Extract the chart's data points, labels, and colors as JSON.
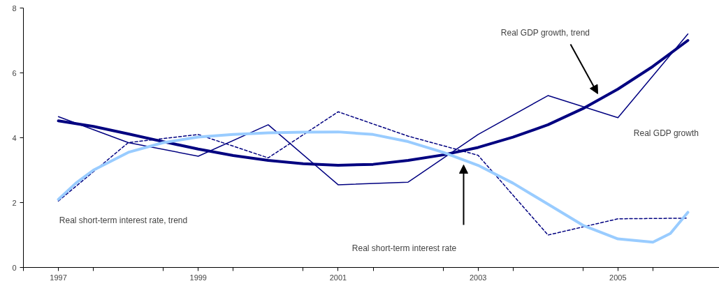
{
  "chart_data": {
    "type": "line",
    "xlim": [
      1996.5,
      2006.45
    ],
    "xticks": [
      {
        "value": 1996.5,
        "label": null
      },
      {
        "value": 1997,
        "label": "1997"
      },
      {
        "value": 1997.5,
        "label": null
      },
      {
        "value": 1998.5,
        "label": null
      },
      {
        "value": 1999,
        "label": "1999"
      },
      {
        "value": 1999.5,
        "label": null
      },
      {
        "value": 2000.5,
        "label": null
      },
      {
        "value": 2001,
        "label": "2001"
      },
      {
        "value": 2001.5,
        "label": null
      },
      {
        "value": 2002.5,
        "label": null
      },
      {
        "value": 2003,
        "label": "2003"
      },
      {
        "value": 2003.5,
        "label": null
      },
      {
        "value": 2004.5,
        "label": null
      },
      {
        "value": 2005,
        "label": "2005"
      },
      {
        "value": 2005.5,
        "label": null
      }
    ],
    "ylim": [
      0,
      8
    ],
    "yticks": [
      0,
      2,
      4,
      6,
      8
    ],
    "grid": false,
    "marker": "none",
    "series": [
      {
        "color": "#000080",
        "line_style": "solid",
        "x": [
          1997,
          1998,
          1999,
          2000,
          2001,
          2002,
          2003,
          2004,
          2005,
          2006
        ],
        "values": [
          4.65,
          3.85,
          3.43,
          4.4,
          2.55,
          2.63,
          4.1,
          5.3,
          4.62,
          7.2
        ]
      },
      {
        "color": "#000080",
        "line_style": "dashed",
        "x": [
          1997,
          1998,
          1999,
          2000,
          2001,
          2002,
          2003,
          2004,
          2005,
          2006
        ],
        "values": [
          2.05,
          3.85,
          4.1,
          3.38,
          4.8,
          4.05,
          3.46,
          1.0,
          1.5,
          1.52
        ]
      },
      {
        "color": "#000080",
        "line_style": "solid",
        "x": [
          1997,
          1997.5,
          1998,
          1998.5,
          1999,
          1999.5,
          2000,
          2000.5,
          2001,
          2001.5,
          2002,
          2002.5,
          2003,
          2003.5,
          2004,
          2004.5,
          2005,
          2005.5,
          2006
        ],
        "values": [
          4.52,
          4.35,
          4.12,
          3.88,
          3.65,
          3.45,
          3.3,
          3.2,
          3.15,
          3.18,
          3.3,
          3.47,
          3.7,
          4.02,
          4.4,
          4.9,
          5.5,
          6.2,
          7.0
        ]
      },
      {
        "color": "#99ccff",
        "line_style": "solid",
        "x": [
          1997,
          1997.25,
          1997.5,
          1998,
          1998.5,
          1999,
          1999.5,
          2000,
          2000.5,
          2001,
          2001.5,
          2002,
          2002.5,
          2003,
          2003.5,
          2004,
          2004.5,
          2005,
          2005.5,
          2005.75,
          2006
        ],
        "values": [
          2.1,
          2.6,
          3.0,
          3.55,
          3.85,
          4.02,
          4.1,
          4.15,
          4.17,
          4.18,
          4.1,
          3.88,
          3.55,
          3.15,
          2.6,
          1.95,
          1.3,
          0.88,
          0.78,
          1.05,
          1.7
        ]
      }
    ],
    "annotations": [
      "Real GDP growth, trend",
      "Real short-term interest rate",
      "Real GDP growth",
      "Real short-term interest rate, trend"
    ]
  }
}
